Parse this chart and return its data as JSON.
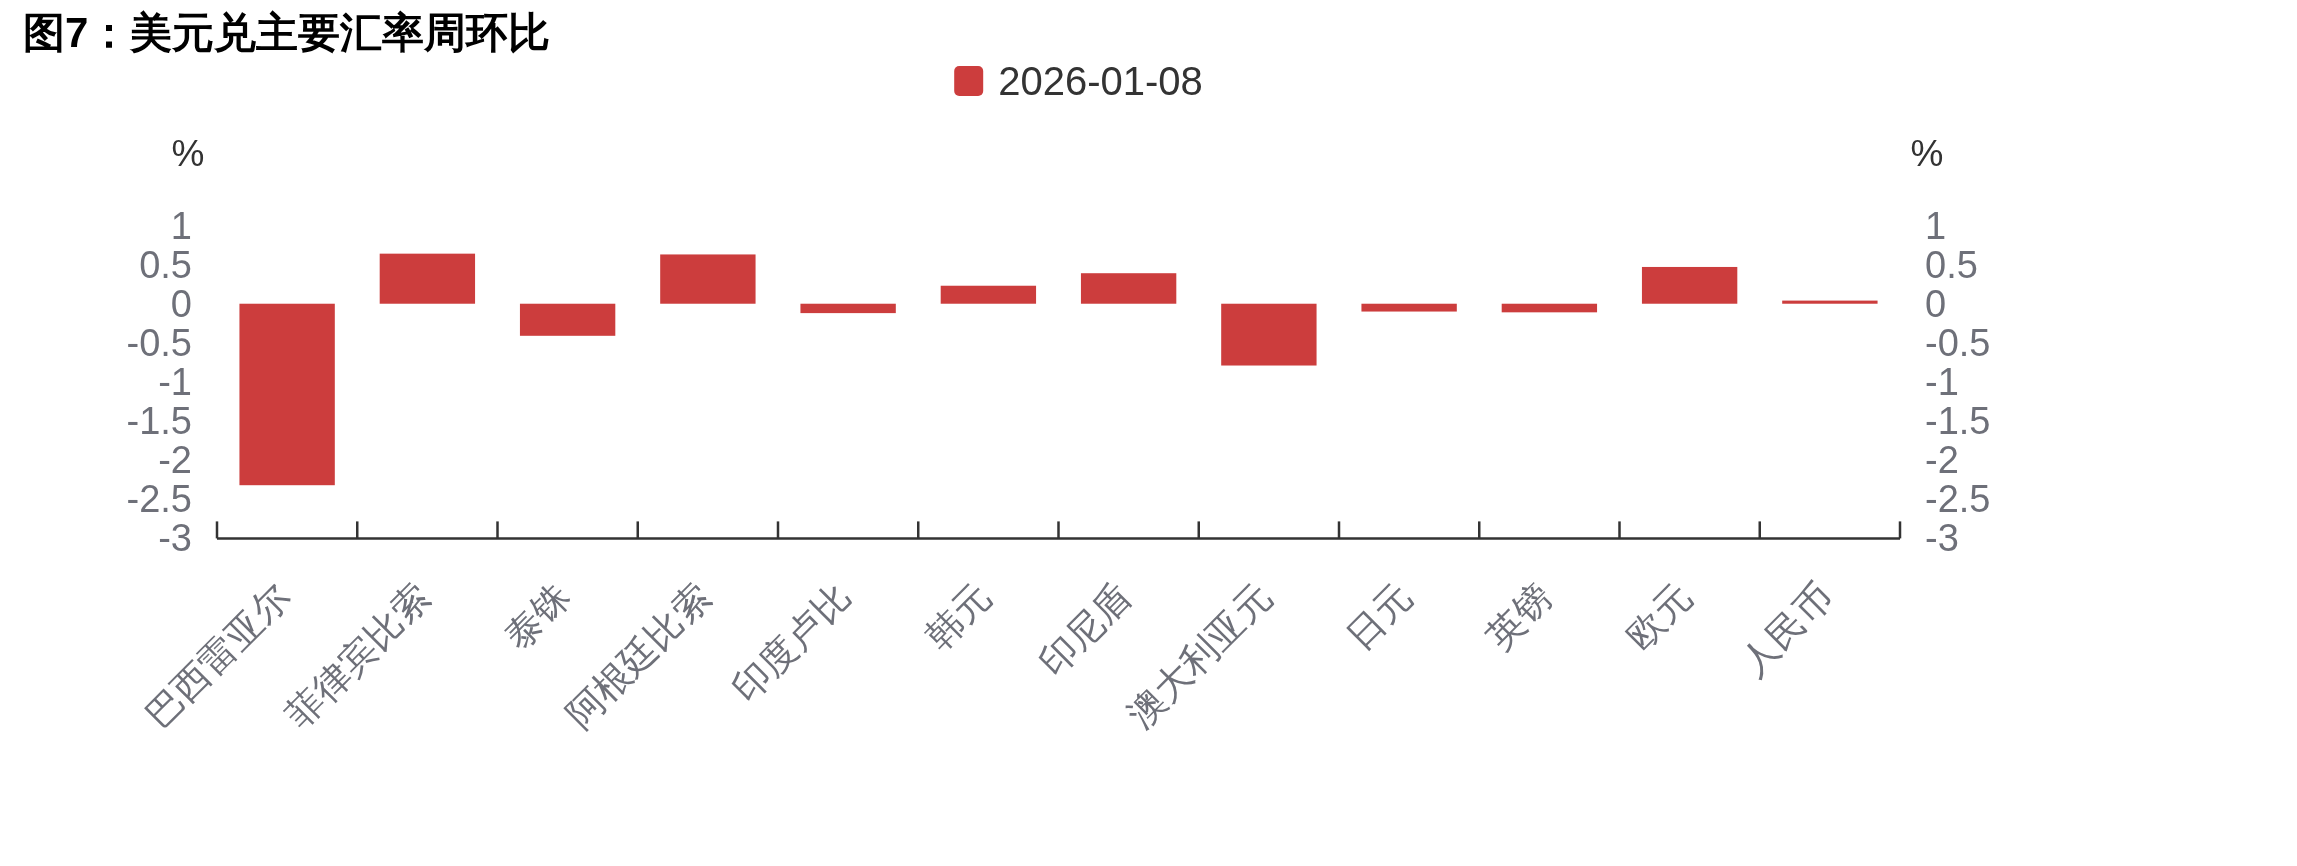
{
  "chart_data": {
    "type": "bar",
    "title": "图7：美元兑主要汇率周环比",
    "ylabel": "%",
    "y2label": "%",
    "categories": [
      "巴西雷亚尔",
      "菲律宾比索",
      "泰铢",
      "阿根廷比索",
      "印度卢比",
      "韩元",
      "印尼盾",
      "澳大利亚元",
      "日元",
      "英镑",
      "欧元",
      "人民币"
    ],
    "series": [
      {
        "name": "2026-01-08",
        "color": "#cc3d3d",
        "values": [
          -2.32,
          0.64,
          -0.41,
          0.63,
          -0.12,
          0.23,
          0.39,
          -0.79,
          -0.1,
          -0.11,
          0.47,
          0.04
        ]
      }
    ],
    "ylim": [
      -3,
      1
    ],
    "yticks": [
      1,
      0.5,
      0,
      -0.5,
      -1,
      -1.5,
      -2,
      -2.5,
      -3
    ],
    "y2lim": [
      -3,
      1
    ],
    "y2ticks": [
      1,
      0.5,
      0,
      -0.5,
      -1,
      -1.5,
      -2,
      -2.5,
      -3
    ],
    "grid": false,
    "legend": "top"
  }
}
